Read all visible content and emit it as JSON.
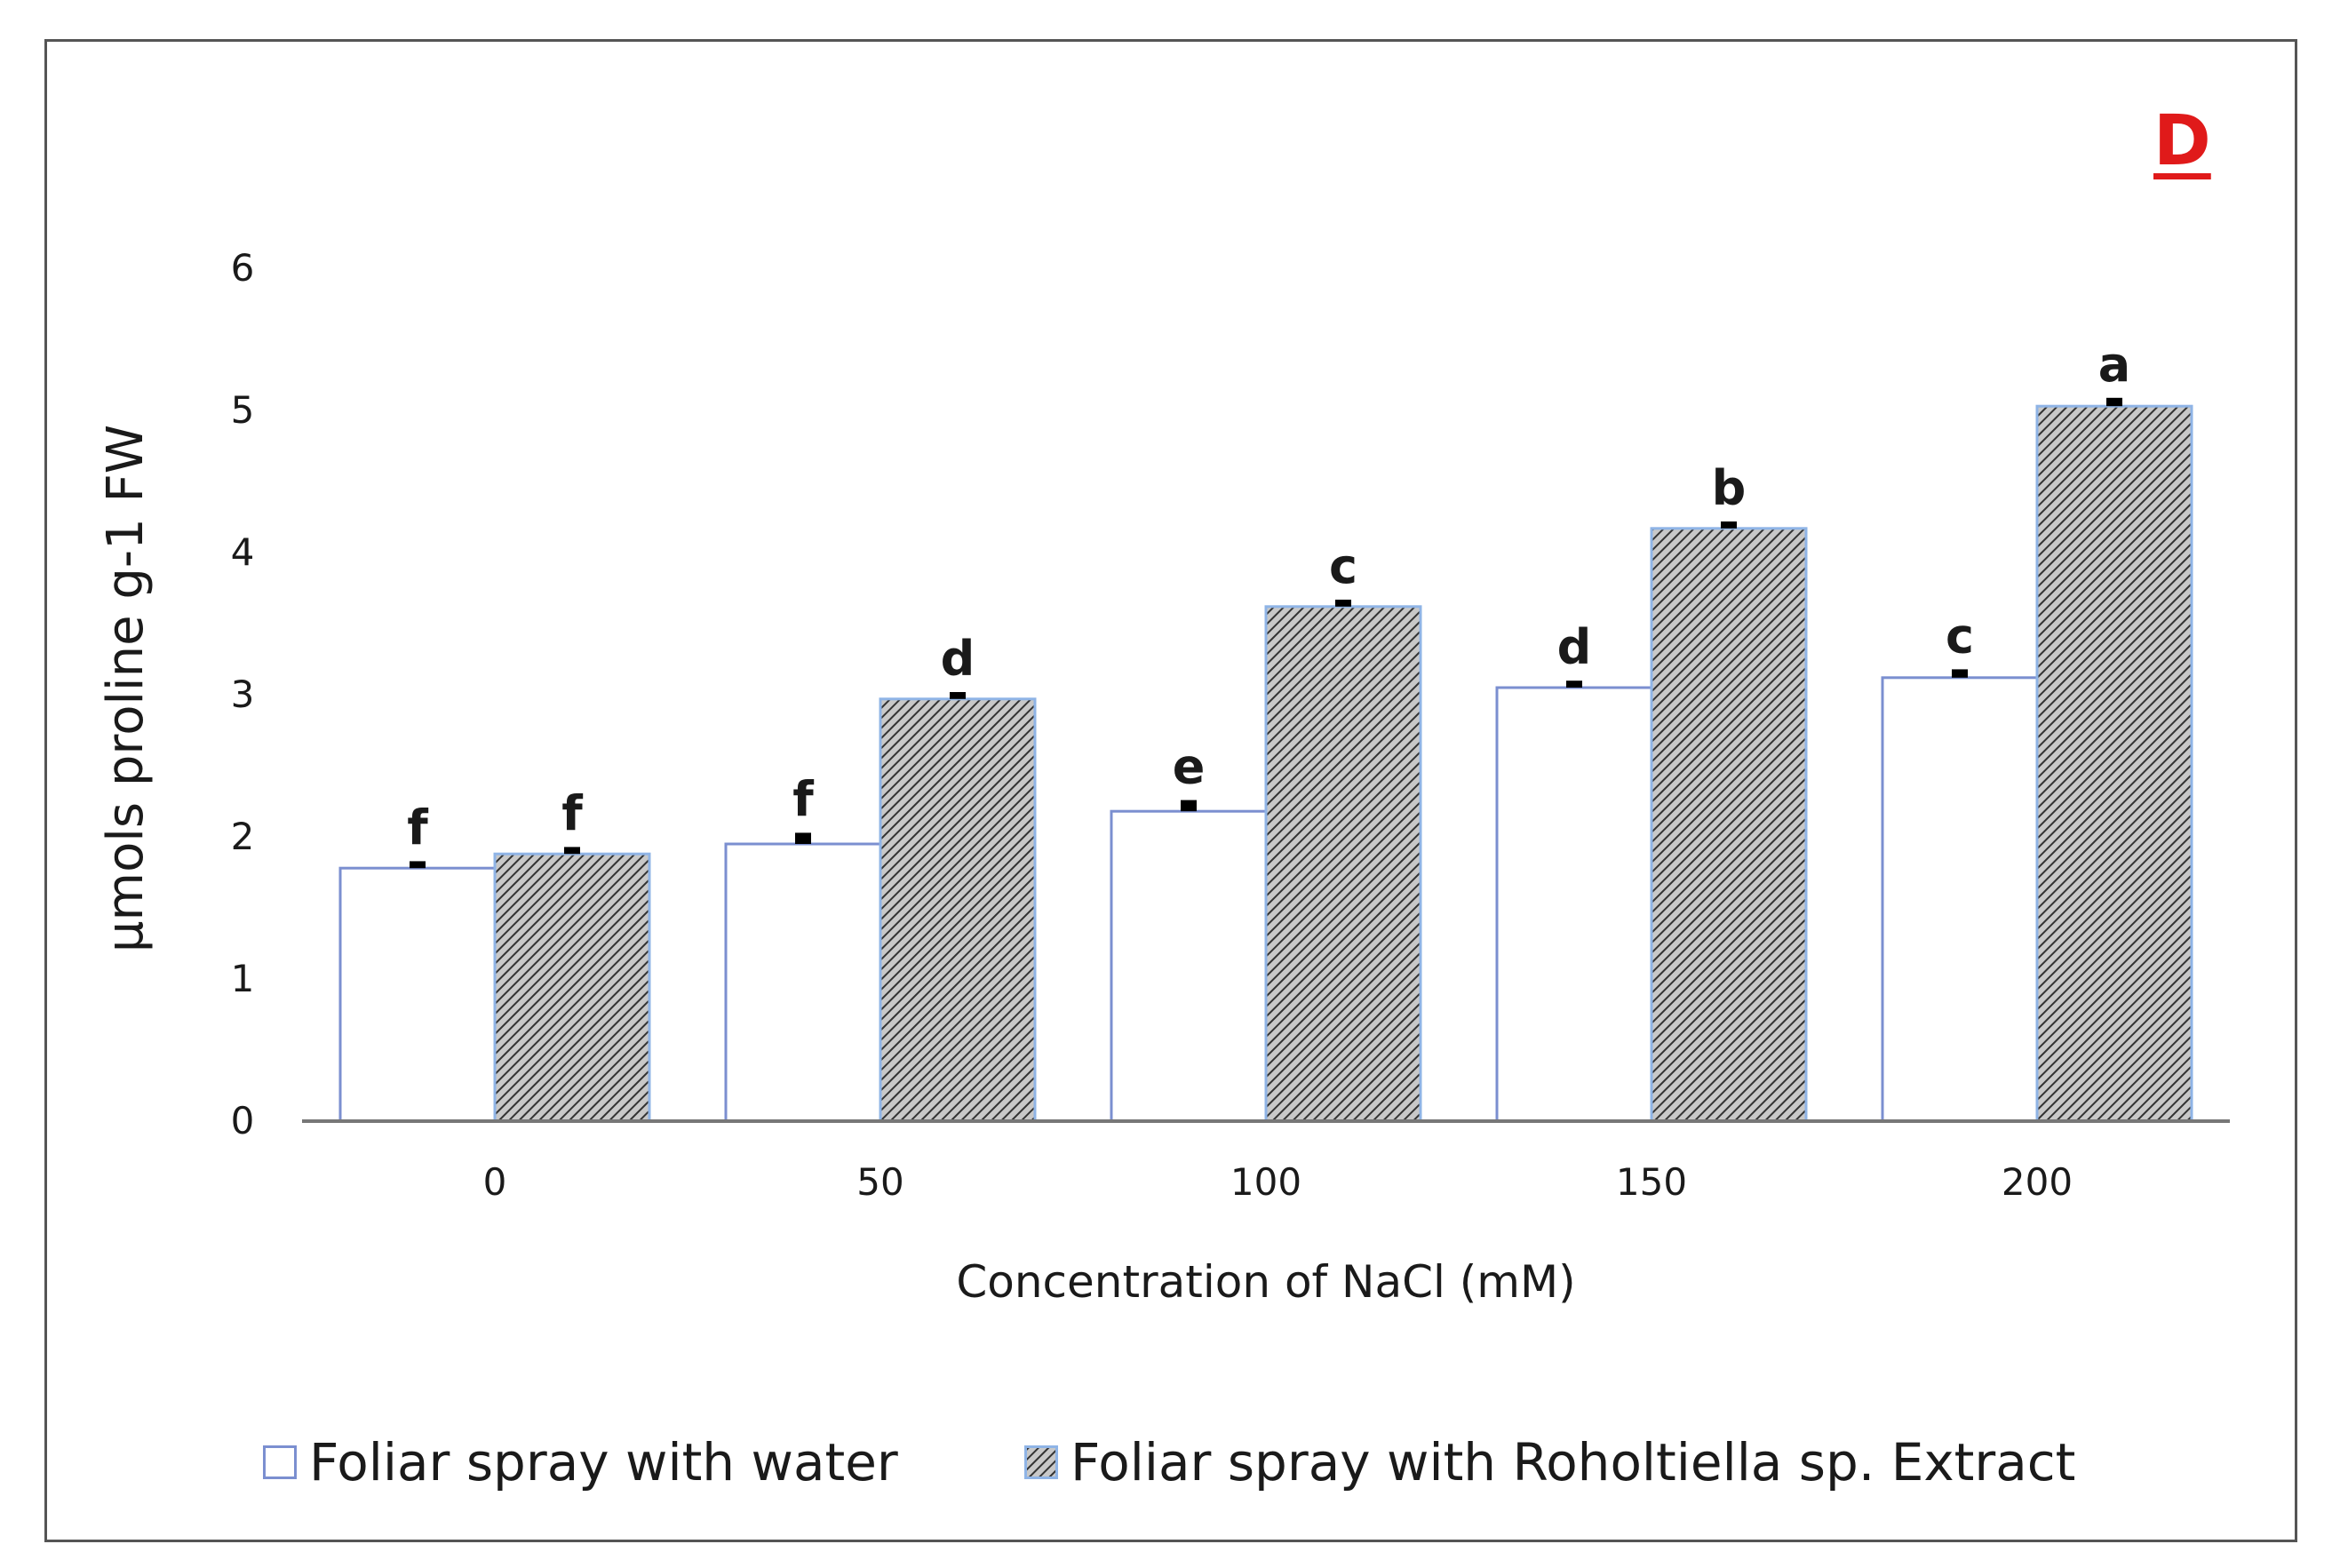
{
  "figure": {
    "panel_label": "D"
  },
  "chart_data": {
    "type": "bar",
    "title": "",
    "xlabel": "Concentration of NaCl (mM)",
    "ylabel": "μmols proline g-1 FW",
    "categories": [
      "0",
      "50",
      "100",
      "150",
      "200"
    ],
    "ylim": [
      0,
      6
    ],
    "yticks": [
      "0",
      "1",
      "2",
      "3",
      "4",
      "5",
      "6"
    ],
    "grid": false,
    "legend_position": "bottom",
    "series": [
      {
        "name": "Foliar spray with water",
        "values": [
          1.78,
          1.95,
          2.18,
          3.05,
          3.12
        ],
        "error": [
          0.03,
          0.06,
          0.06,
          0.03,
          0.04
        ],
        "letters": [
          "f",
          "f",
          "e",
          "d",
          "c"
        ],
        "fill": "#ffffff",
        "stroke": "#7b8fd0"
      },
      {
        "name": "Foliar spray with Roholtiella sp. Extract",
        "values": [
          1.88,
          2.97,
          3.62,
          4.17,
          5.03
        ],
        "error": [
          0.03,
          0.03,
          0.03,
          0.03,
          0.04
        ],
        "letters": [
          "f",
          "d",
          "c",
          "b",
          "a"
        ],
        "fill": "hatch",
        "stroke": "#8fb4e6"
      }
    ]
  },
  "colors": {
    "panel_label": "#e01a1a",
    "axis": "#777777",
    "text": "#1a1a1a",
    "hatch_line": "#333333",
    "hatch_bg": "#c8c8c8"
  }
}
